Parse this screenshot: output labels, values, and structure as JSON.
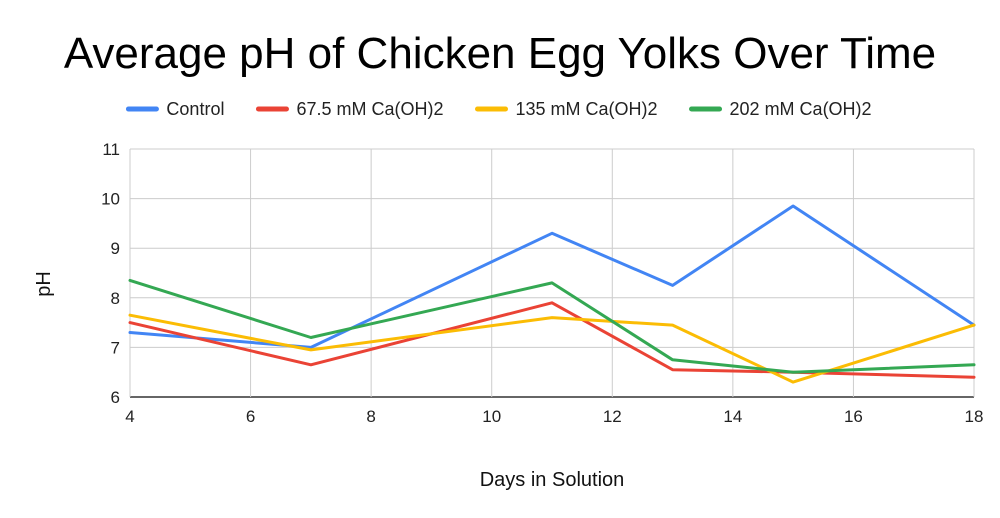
{
  "chart_data": {
    "type": "line",
    "title": "Average pH of Chicken Egg Yolks Over Time",
    "xlabel": "Days in Solution",
    "ylabel": "pH",
    "x": [
      4,
      7,
      11,
      13,
      15,
      18
    ],
    "xlim": [
      4,
      18
    ],
    "ylim": [
      6,
      11
    ],
    "xticks": [
      "4",
      "6",
      "8",
      "10",
      "12",
      "14",
      "16",
      "18"
    ],
    "yticks": [
      "6",
      "7",
      "8",
      "9",
      "10",
      "11"
    ],
    "grid": true,
    "legend_position": "top",
    "series": [
      {
        "name": "Control",
        "color": "#4285f4",
        "values": [
          7.3,
          7.0,
          9.3,
          8.25,
          9.85,
          7.45
        ]
      },
      {
        "name": "67.5 mM Ca(OH)2",
        "color": "#ea4335",
        "values": [
          7.5,
          6.65,
          7.9,
          6.55,
          6.5,
          6.4
        ]
      },
      {
        "name": "135 mM Ca(OH)2",
        "color": "#fbbc04",
        "values": [
          7.65,
          6.95,
          7.6,
          7.45,
          6.3,
          7.45
        ]
      },
      {
        "name": "202 mM Ca(OH)2",
        "color": "#34a853",
        "values": [
          8.35,
          7.2,
          8.3,
          6.75,
          6.5,
          6.65
        ]
      }
    ]
  }
}
